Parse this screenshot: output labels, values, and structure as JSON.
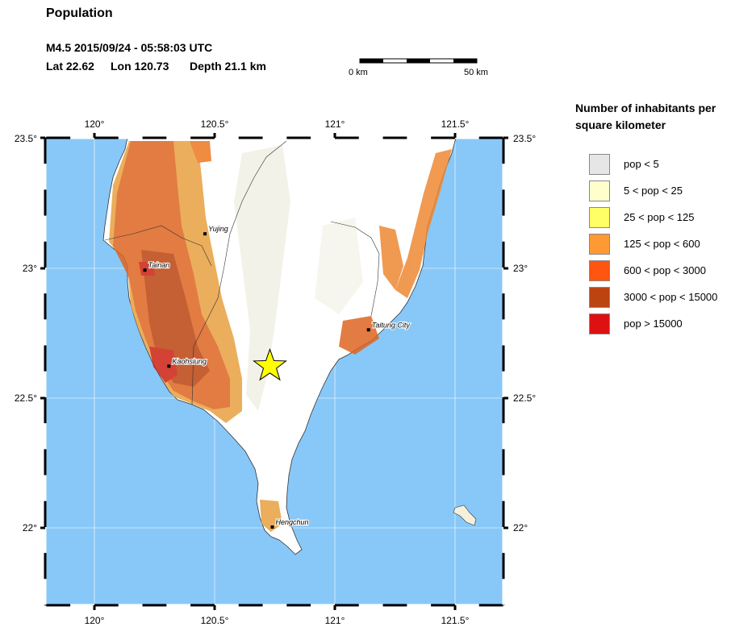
{
  "title": "Population",
  "event": {
    "line1": "M4.5  2015/09/24 - 05:58:03 UTC",
    "lat": "Lat 22.62",
    "lon": "Lon 120.73",
    "depth": "Depth  21.1 km"
  },
  "scale_bar": {
    "left_label": "0 km",
    "right_label": "50 km"
  },
  "map": {
    "lon_labels": [
      "120°",
      "120.5°",
      "121°",
      "121.5°"
    ],
    "lat_labels": [
      "23.5°",
      "23°",
      "22.5°",
      "22°"
    ],
    "cities": [
      {
        "name": "Yujing",
        "lon": 120.46,
        "lat": 23.13
      },
      {
        "name": "Tainan",
        "lon": 120.21,
        "lat": 22.99
      },
      {
        "name": "Kaohsiung",
        "lon": 120.31,
        "lat": 22.62
      },
      {
        "name": "Taitung City",
        "lon": 121.14,
        "lat": 22.76
      },
      {
        "name": "Hengchun",
        "lon": 120.74,
        "lat": 22.0
      }
    ],
    "epicenter": {
      "lon": 120.73,
      "lat": 22.62
    },
    "colors": {
      "ocean": "#88c8f8",
      "land": "#ffffff",
      "grid": "#ffffff",
      "star": "#ffff00"
    }
  },
  "legend": {
    "title": "Number of inhabitants per square kilometer",
    "items": [
      {
        "label": "pop < 5",
        "color": "#e6e6e6"
      },
      {
        "label": "5 < pop < 25",
        "color": "#ffffcc"
      },
      {
        "label": "25 < pop < 125",
        "color": "#ffff66"
      },
      {
        "label": "125 < pop < 600",
        "color": "#ff9933"
      },
      {
        "label": "600 < pop < 3000",
        "color": "#ff5511"
      },
      {
        "label": "3000 < pop < 15000",
        "color": "#bb4411"
      },
      {
        "label": "pop > 15000",
        "color": "#dd1111"
      }
    ]
  }
}
